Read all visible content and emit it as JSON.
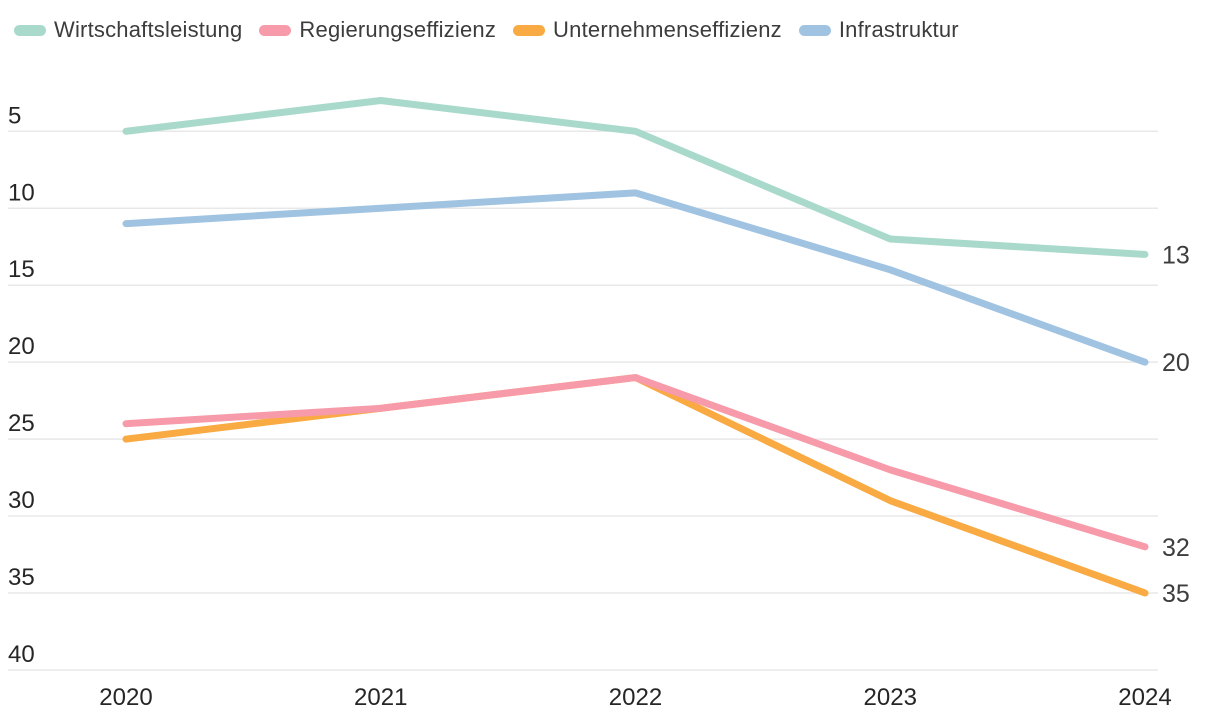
{
  "chart_data": {
    "type": "line",
    "title": "",
    "xlabel": "",
    "ylabel": "",
    "x": [
      "2020",
      "2021",
      "2022",
      "2023",
      "2024"
    ],
    "series": [
      {
        "name": "Wirtschaftsleistung",
        "color": "#a9d9ca",
        "values": [
          5,
          3,
          5,
          12,
          13
        ],
        "end_label": "13"
      },
      {
        "name": "Regierungseffizienz",
        "color": "#f79aa9",
        "values": [
          24,
          23,
          21,
          27,
          32
        ],
        "end_label": "32"
      },
      {
        "name": "Unternehmenseffizienz",
        "color": "#f9aa42",
        "values": [
          25,
          23,
          21,
          29,
          35
        ],
        "end_label": "35"
      },
      {
        "name": "Infrastruktur",
        "color": "#a0c3e1",
        "values": [
          11,
          10,
          9,
          14,
          20
        ],
        "end_label": "20"
      }
    ],
    "y_ticks": [
      5,
      10,
      15,
      20,
      25,
      30,
      35,
      40
    ],
    "y_axis_inverted": true,
    "ylim": [
      2,
      41
    ],
    "grid": true,
    "legend_position": "top"
  },
  "colors": {
    "grid_line": "#e8e8e8",
    "tick_label": "#262626",
    "year_label": "#262626",
    "end_label": "#3d3d3d",
    "legend_text": "#3c3c3c",
    "background": "#ffffff"
  }
}
